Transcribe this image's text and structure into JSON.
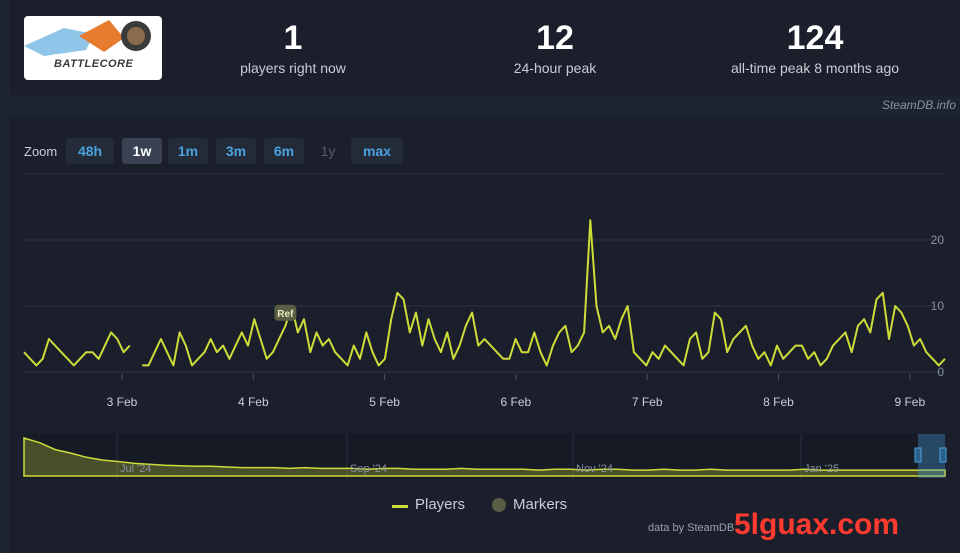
{
  "header": {
    "logo_text": "BATTLECORE",
    "stats": [
      {
        "value": "1",
        "label": "players right now"
      },
      {
        "value": "12",
        "label": "24-hour peak"
      },
      {
        "value": "124",
        "label": "all-time peak 8 months ago"
      }
    ],
    "source_label": "SteamDB.info"
  },
  "zoom": {
    "label": "Zoom",
    "buttons": [
      {
        "label": "48h",
        "state": "normal"
      },
      {
        "label": "1w",
        "state": "active"
      },
      {
        "label": "1m",
        "state": "normal"
      },
      {
        "label": "3m",
        "state": "normal"
      },
      {
        "label": "6m",
        "state": "normal"
      },
      {
        "label": "1y",
        "state": "disabled"
      },
      {
        "label": "max",
        "state": "normal"
      }
    ]
  },
  "legend": {
    "players": "Players",
    "markers": "Markers"
  },
  "credit": "data by SteamDB",
  "watermark": "5lguax.com",
  "colors": {
    "line": "#cddc39",
    "background": "#1a1f2b",
    "accent": "#4aa3df"
  },
  "chart_data": [
    {
      "type": "line",
      "series": [
        {
          "name": "Players"
        }
      ],
      "x_ticks": [
        "3 Feb",
        "4 Feb",
        "5 Feb",
        "6 Feb",
        "7 Feb",
        "8 Feb",
        "9 Feb"
      ],
      "y_ticks": [
        0,
        10,
        20
      ],
      "ylim": [
        0,
        24
      ],
      "grid": true,
      "marker_label": "Ref",
      "marker_index": 42,
      "gap": [
        17,
        19
      ],
      "values": [
        3,
        2,
        1,
        2,
        5,
        4,
        3,
        2,
        1,
        2,
        3,
        3,
        2,
        4,
        6,
        5,
        3,
        4,
        2,
        1,
        1,
        3,
        5,
        3,
        1,
        6,
        4,
        1,
        2,
        3,
        5,
        3,
        4,
        2,
        4,
        6,
        4,
        8,
        5,
        2,
        3,
        5,
        7,
        10,
        6,
        8,
        3,
        6,
        4,
        5,
        3,
        2,
        1,
        4,
        2,
        6,
        3,
        1,
        2,
        8,
        12,
        11,
        6,
        9,
        4,
        8,
        5,
        3,
        6,
        2,
        4,
        7,
        9,
        4,
        5,
        4,
        3,
        2,
        2,
        5,
        3,
        3,
        6,
        3,
        1,
        4,
        6,
        7,
        3,
        4,
        6,
        23,
        10,
        6,
        7,
        5,
        8,
        10,
        3,
        2,
        1,
        3,
        2,
        4,
        3,
        2,
        1,
        5,
        6,
        2,
        3,
        9,
        8,
        3,
        5,
        6,
        7,
        4,
        2,
        3,
        1,
        4,
        2,
        3,
        4,
        4,
        2,
        3,
        1,
        2,
        4,
        5,
        6,
        3,
        7,
        8,
        6,
        11,
        12,
        5,
        10,
        9,
        7,
        4,
        5,
        3,
        2,
        1,
        2
      ]
    },
    {
      "type": "area",
      "x_ticks": [
        "Jul '24",
        "Sep '24",
        "Nov '24",
        "Jan '25"
      ],
      "values": [
        124,
        95,
        60,
        45,
        30,
        22,
        18,
        14,
        12,
        10,
        9,
        8,
        8,
        7,
        6,
        6,
        6,
        5,
        6,
        5,
        5,
        5,
        4,
        5,
        5,
        4,
        4,
        4,
        5,
        4,
        4,
        4,
        4,
        3,
        4,
        4,
        3,
        4,
        4,
        3,
        3,
        4,
        3,
        3,
        4,
        3,
        3,
        3,
        3,
        3,
        4,
        3,
        3,
        3,
        3,
        3,
        3,
        3,
        3,
        3
      ]
    }
  ]
}
